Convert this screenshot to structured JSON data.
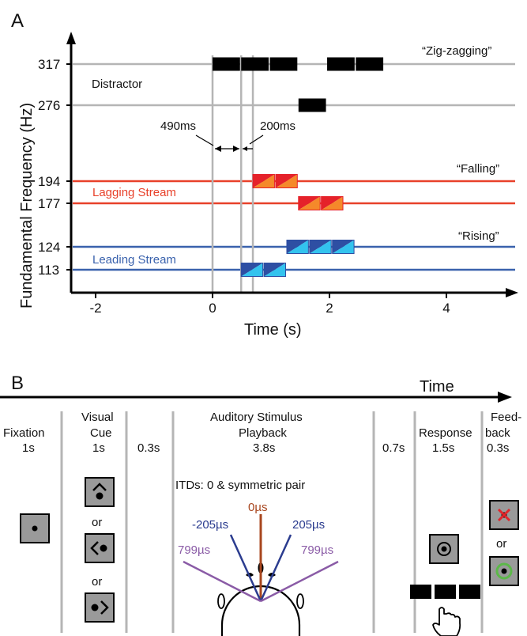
{
  "colors": {
    "grid": "#b5b5b5",
    "distractor": "#000000",
    "lagging": "#e8412a",
    "lagging_fill_a": "#e5222a",
    "lagging_fill_b": "#f5892a",
    "leading": "#3a62ad",
    "leading_fill_a": "#2e4fa3",
    "leading_fill_b": "#33c3ee",
    "itd_zero": "#a8461e",
    "itd_205": "#2b3c8f",
    "itd_799": "#8a5ba6",
    "feedback_wrong": "#e0252b",
    "feedback_right": "#5cb849"
  },
  "panel_a": {
    "label": "A",
    "ylabel": "Fundamental Frequency (Hz)",
    "xlabel": "Time (s)",
    "yticks": [
      "317",
      "276",
      "194",
      "177",
      "124",
      "113"
    ],
    "xticks": [
      "-2",
      "0",
      "2",
      "4"
    ],
    "distractor_label": "Distractor",
    "zig_label": "“Zig-zagging”",
    "falling_label": "“Falling”",
    "rising_label": "“Rising”",
    "lagging_label": "Lagging Stream",
    "leading_label": "Leading Stream",
    "gap490": "490ms",
    "gap200": "200ms"
  },
  "chart_data": {
    "type": "timeline",
    "xlabel": "Time (s)",
    "ylabel": "Fundamental Frequency (Hz)",
    "xlim": [
      -2.3,
      4.8
    ],
    "xticks": [
      -2,
      0,
      2,
      4
    ],
    "markers_s": [
      0,
      0.49,
      0.69
    ],
    "series": [
      {
        "name": "Distractor",
        "segments": [
          {
            "start": 0.0,
            "end": 0.47,
            "f0": 317
          },
          {
            "start": 0.49,
            "end": 0.96,
            "f0": 317
          },
          {
            "start": 0.98,
            "end": 1.45,
            "f0": 317
          },
          {
            "start": 1.47,
            "end": 1.94,
            "f0": 276
          },
          {
            "start": 1.96,
            "end": 2.43,
            "f0": 317
          },
          {
            "start": 2.45,
            "end": 2.92,
            "f0": 317
          }
        ]
      },
      {
        "name": "Lagging Stream",
        "segments": [
          {
            "start": 0.69,
            "end": 1.06,
            "f0": 194
          },
          {
            "start": 1.08,
            "end": 1.45,
            "f0": 194
          },
          {
            "start": 1.47,
            "end": 1.84,
            "f0": 177
          },
          {
            "start": 1.86,
            "end": 2.23,
            "f0": 177
          }
        ]
      },
      {
        "name": "Leading Stream",
        "segments": [
          {
            "start": 0.49,
            "end": 0.86,
            "f0": 113
          },
          {
            "start": 0.88,
            "end": 1.25,
            "f0": 113
          },
          {
            "start": 1.27,
            "end": 1.64,
            "f0": 124
          },
          {
            "start": 1.66,
            "end": 2.03,
            "f0": 124
          },
          {
            "start": 2.05,
            "end": 2.42,
            "f0": 124
          }
        ]
      }
    ]
  },
  "panel_b": {
    "label": "B",
    "time_label": "Time",
    "or": "or",
    "columns": [
      {
        "name": "Fixation",
        "duration": "1s"
      },
      {
        "name": "Visual\nCue",
        "duration": "1s"
      },
      {
        "name": "",
        "duration": "0.3s"
      },
      {
        "name": "Auditory Stimulus\nPlayback",
        "duration": "3.8s"
      },
      {
        "name": "",
        "duration": "0.7s"
      },
      {
        "name": "Response",
        "duration": "1.5s"
      },
      {
        "name": "Feed-\nback",
        "duration": "0.3s"
      }
    ],
    "itd_title": "ITDs: 0 & symmetric pair",
    "itd_zero": "0µs",
    "itd_neg205": "-205µs",
    "itd_pos205": "205µs",
    "itd_left799": "799µs",
    "itd_right799": "799µs"
  }
}
